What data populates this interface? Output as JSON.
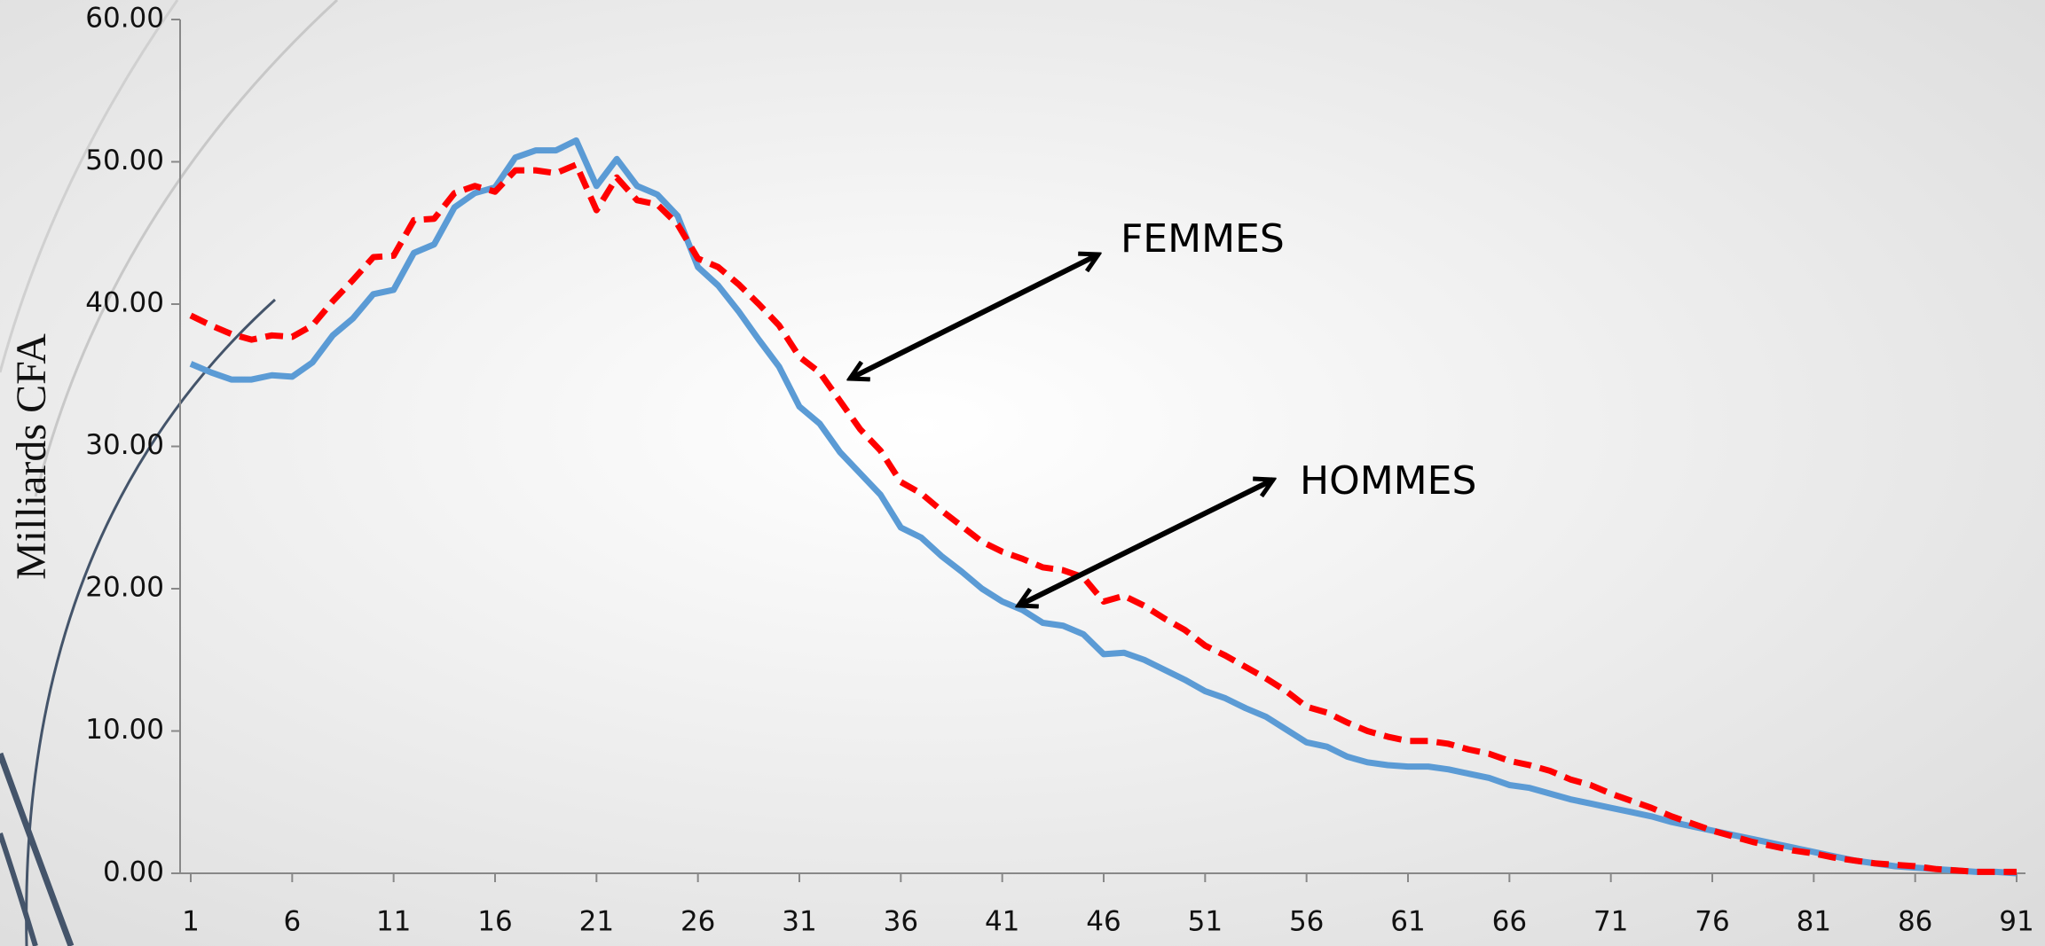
{
  "chart_data": {
    "type": "line",
    "y_label": "Milliards CFA",
    "x": [
      1,
      2,
      3,
      4,
      5,
      6,
      7,
      8,
      9,
      10,
      11,
      12,
      13,
      14,
      15,
      16,
      17,
      18,
      19,
      20,
      21,
      22,
      23,
      24,
      25,
      26,
      27,
      28,
      29,
      30,
      31,
      32,
      33,
      34,
      35,
      36,
      37,
      38,
      39,
      40,
      41,
      42,
      43,
      44,
      45,
      46,
      47,
      48,
      49,
      50,
      51,
      52,
      53,
      54,
      55,
      56,
      57,
      58,
      59,
      60,
      61,
      62,
      63,
      64,
      65,
      66,
      67,
      68,
      69,
      70,
      71,
      72,
      73,
      74,
      75,
      76,
      77,
      78,
      79,
      80,
      81,
      82,
      83,
      84,
      85,
      86,
      87,
      88,
      89,
      90,
      91
    ],
    "xlim": [
      1,
      91
    ],
    "xticks": [
      1,
      6,
      11,
      16,
      21,
      26,
      31,
      36,
      41,
      46,
      51,
      56,
      61,
      66,
      71,
      76,
      81,
      86,
      91
    ],
    "ylim": [
      0,
      60
    ],
    "yticks": [
      {
        "value": 0,
        "label": "0.00"
      },
      {
        "value": 10,
        "label": "10.00"
      },
      {
        "value": 20,
        "label": "20.00"
      },
      {
        "value": 30,
        "label": "30.00"
      },
      {
        "value": 40,
        "label": "40.00"
      },
      {
        "value": 50,
        "label": "50.00"
      },
      {
        "value": 60,
        "label": "60.00"
      }
    ],
    "series": [
      {
        "name": "HOMMES",
        "color": "#5b9bd5",
        "dashed": false,
        "values": [
          35.8,
          35.2,
          34.7,
          34.7,
          35.0,
          34.9,
          35.9,
          37.8,
          39.0,
          40.7,
          41.0,
          43.6,
          44.2,
          46.8,
          47.8,
          48.2,
          50.3,
          50.8,
          50.8,
          51.5,
          48.3,
          50.2,
          48.3,
          47.7,
          46.2,
          42.6,
          41.3,
          39.5,
          37.5,
          35.6,
          32.8,
          31.6,
          29.6,
          28.1,
          26.6,
          24.3,
          23.6,
          22.3,
          21.2,
          20.0,
          19.1,
          18.5,
          17.6,
          17.4,
          16.8,
          15.4,
          15.5,
          15.0,
          14.3,
          13.6,
          12.8,
          12.3,
          11.6,
          11.0,
          10.1,
          9.2,
          8.9,
          8.2,
          7.8,
          7.6,
          7.5,
          7.5,
          7.3,
          7.0,
          6.7,
          6.2,
          6.0,
          5.6,
          5.2,
          4.9,
          4.6,
          4.3,
          4.0,
          3.6,
          3.3,
          3.0,
          2.7,
          2.4,
          2.1,
          1.8,
          1.5,
          1.2,
          0.9,
          0.7,
          0.5,
          0.4,
          0.3,
          0.2,
          0.1,
          0.1,
          0.0
        ]
      },
      {
        "name": "FEMMES",
        "color": "#ff0000",
        "dashed": true,
        "values": [
          39.2,
          38.5,
          37.9,
          37.5,
          37.8,
          37.7,
          38.5,
          40.2,
          41.7,
          43.3,
          43.4,
          45.9,
          46.0,
          47.8,
          48.3,
          47.9,
          49.4,
          49.4,
          49.2,
          49.8,
          46.6,
          48.9,
          47.3,
          47.0,
          45.6,
          43.2,
          42.6,
          41.4,
          40.0,
          38.5,
          36.3,
          35.2,
          33.2,
          31.2,
          29.7,
          27.5,
          26.7,
          25.5,
          24.4,
          23.3,
          22.6,
          22.1,
          21.5,
          21.3,
          20.8,
          19.1,
          19.5,
          18.8,
          17.9,
          17.1,
          16.0,
          15.3,
          14.5,
          13.7,
          12.8,
          11.7,
          11.3,
          10.6,
          10.0,
          9.6,
          9.3,
          9.3,
          9.1,
          8.7,
          8.4,
          7.9,
          7.6,
          7.2,
          6.6,
          6.2,
          5.6,
          5.1,
          4.6,
          4.0,
          3.5,
          3.0,
          2.6,
          2.2,
          1.9,
          1.6,
          1.4,
          1.1,
          0.9,
          0.7,
          0.6,
          0.5,
          0.3,
          0.2,
          0.1,
          0.1,
          0.1
        ]
      }
    ]
  }
}
